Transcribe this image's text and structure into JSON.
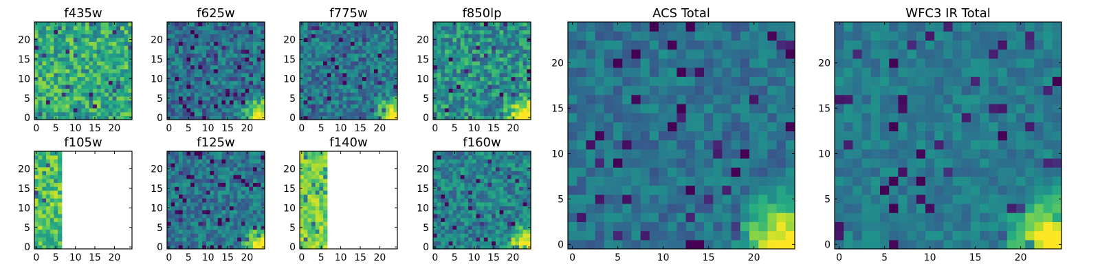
{
  "figure": {
    "type": "heatmap",
    "colormap": "viridis",
    "panels": [
      {
        "name": "panel-f435w",
        "title": "f435w",
        "xticks": [
          "0",
          "5",
          "10",
          "15",
          "20"
        ],
        "yticks": [
          "0",
          "5",
          "10",
          "15",
          "20"
        ],
        "coverage_cols": 25,
        "seed": 11,
        "base": 0.62,
        "spread": 0.22,
        "hot_corner": 0.0
      },
      {
        "name": "panel-f625w",
        "title": "f625w",
        "xticks": [
          "0",
          "5",
          "10",
          "15",
          "20"
        ],
        "yticks": [
          "0",
          "5",
          "10",
          "15",
          "20"
        ],
        "coverage_cols": 25,
        "seed": 23,
        "base": 0.38,
        "spread": 0.18,
        "hot_corner": 1.0
      },
      {
        "name": "panel-f775w",
        "title": "f775w",
        "xticks": [
          "0",
          "5",
          "10",
          "15",
          "20"
        ],
        "yticks": [
          "0",
          "5",
          "10",
          "15",
          "20"
        ],
        "coverage_cols": 25,
        "seed": 37,
        "base": 0.4,
        "spread": 0.18,
        "hot_corner": 1.0
      },
      {
        "name": "panel-f850lp",
        "title": "f850lp",
        "xticks": [
          "0",
          "5",
          "10",
          "15",
          "20"
        ],
        "yticks": [
          "0",
          "5",
          "10",
          "15",
          "20"
        ],
        "coverage_cols": 25,
        "seed": 41,
        "base": 0.5,
        "spread": 0.22,
        "hot_corner": 1.0
      },
      {
        "name": "panel-f105w",
        "title": "f105w",
        "xticks": [
          "0",
          "5",
          "10",
          "15",
          "20"
        ],
        "yticks": [
          "0",
          "5",
          "10",
          "15",
          "20"
        ],
        "coverage_cols": 7,
        "seed": 53,
        "base": 0.72,
        "spread": 0.2,
        "hot_corner": 0.0
      },
      {
        "name": "panel-f125w",
        "title": "f125w",
        "xticks": [
          "0",
          "5",
          "10",
          "15",
          "20"
        ],
        "yticks": [
          "0",
          "5",
          "10",
          "15",
          "20"
        ],
        "coverage_cols": 25,
        "seed": 67,
        "base": 0.4,
        "spread": 0.16,
        "hot_corner": 1.0
      },
      {
        "name": "panel-f140w",
        "title": "f140w",
        "xticks": [
          "0",
          "5",
          "10",
          "15",
          "20"
        ],
        "yticks": [
          "0",
          "5",
          "10",
          "15",
          "20"
        ],
        "coverage_cols": 7,
        "seed": 71,
        "base": 0.8,
        "spread": 0.15,
        "hot_corner": 0.0
      },
      {
        "name": "panel-f160w",
        "title": "f160w",
        "xticks": [
          "0",
          "5",
          "10",
          "15",
          "20"
        ],
        "yticks": [
          "0",
          "5",
          "10",
          "15",
          "20"
        ],
        "coverage_cols": 25,
        "seed": 83,
        "base": 0.45,
        "spread": 0.18,
        "hot_corner": 1.0
      },
      {
        "name": "panel-acs-total",
        "title": "ACS Total",
        "xticks": [
          "0",
          "5",
          "10",
          "15",
          "20"
        ],
        "yticks": [
          "0",
          "5",
          "10",
          "15",
          "20"
        ],
        "coverage_cols": 25,
        "seed": 97,
        "base": 0.38,
        "spread": 0.12,
        "hot_corner": 1.0
      },
      {
        "name": "panel-wfc3-ir-total",
        "title": "WFC3 IR Total",
        "xticks": [
          "0",
          "5",
          "10",
          "15",
          "20"
        ],
        "yticks": [
          "0",
          "5",
          "10",
          "15",
          "20"
        ],
        "coverage_cols": 25,
        "seed": 101,
        "base": 0.42,
        "spread": 0.1,
        "hot_corner": 1.0
      }
    ]
  }
}
